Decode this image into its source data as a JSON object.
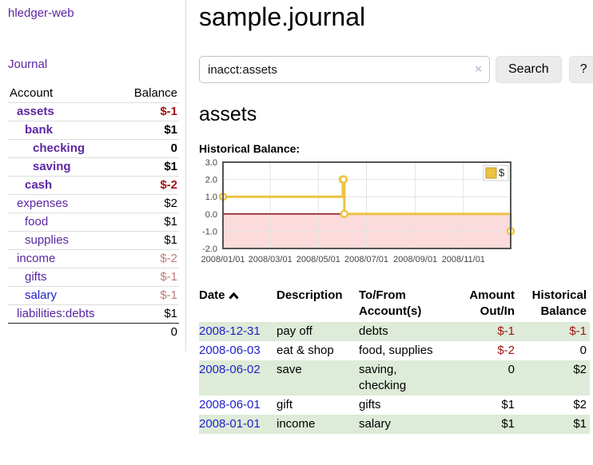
{
  "sidebar": {
    "app_title": "hledger-web",
    "nav": {
      "journal": "Journal"
    },
    "accounts_table": {
      "headers": {
        "account": "Account",
        "balance": "Balance"
      },
      "rows": [
        {
          "name": "assets",
          "balance": "$-1",
          "depth": 1,
          "bold": true,
          "neg": "strong",
          "link_color": "purple"
        },
        {
          "name": "bank",
          "balance": "$1",
          "depth": 2,
          "bold": true,
          "neg": null,
          "link_color": "purple"
        },
        {
          "name": "checking",
          "balance": "0",
          "depth": 3,
          "bold": true,
          "neg": null,
          "link_color": "purple"
        },
        {
          "name": "saving",
          "balance": "$1",
          "depth": 3,
          "bold": true,
          "neg": null,
          "link_color": "purple"
        },
        {
          "name": "cash",
          "balance": "$-2",
          "depth": 2,
          "bold": true,
          "neg": "strong",
          "link_color": "purple"
        },
        {
          "name": "expenses",
          "balance": "$2",
          "depth": 1,
          "bold": false,
          "neg": null,
          "link_color": "purple"
        },
        {
          "name": "food",
          "balance": "$1",
          "depth": 2,
          "bold": false,
          "neg": null,
          "link_color": "purple"
        },
        {
          "name": "supplies",
          "balance": "$1",
          "depth": 2,
          "bold": false,
          "neg": null,
          "link_color": "purple"
        },
        {
          "name": "income",
          "balance": "$-2",
          "depth": 1,
          "bold": false,
          "neg": "soft",
          "link_color": "purple"
        },
        {
          "name": "gifts",
          "balance": "$-1",
          "depth": 2,
          "bold": false,
          "neg": "soft",
          "link_color": "purple"
        },
        {
          "name": "salary",
          "balance": "$-1",
          "depth": 2,
          "bold": false,
          "neg": "soft",
          "link_color": "blue"
        },
        {
          "name": "liabilities:debts",
          "balance": "$1",
          "depth": 1,
          "bold": false,
          "neg": null,
          "link_color": "purple"
        }
      ],
      "total": "0"
    }
  },
  "header": {
    "title": "sample.journal"
  },
  "search": {
    "value": "inacct:assets",
    "clear_icon": "×",
    "button_label": "Search",
    "help_label": "?"
  },
  "account_page": {
    "heading": "assets",
    "chart_label": "Historical Balance:"
  },
  "chart_data": {
    "type": "line",
    "title": "Historical Balance:",
    "step": true,
    "series": [
      {
        "name": "$",
        "color": "#edc240",
        "points": [
          [
            "2008-01-01",
            1
          ],
          [
            "2008-06-01",
            2
          ],
          [
            "2008-06-02",
            2
          ],
          [
            "2008-06-03",
            0
          ],
          [
            "2008-12-31",
            -1
          ]
        ]
      }
    ],
    "x_range": [
      "2008-01-01",
      "2008-12-31"
    ],
    "x_ticks": [
      {
        "date": "2008-01-01",
        "label": "2008/01/01"
      },
      {
        "date": "2008-03-01",
        "label": "2008/03/01"
      },
      {
        "date": "2008-05-01",
        "label": "2008/05/01"
      },
      {
        "date": "2008-07-01",
        "label": "2008/07/01"
      },
      {
        "date": "2008-09-01",
        "label": "2008/09/01"
      },
      {
        "date": "2008-11-01",
        "label": "2008/11/01"
      }
    ],
    "y_ticks": [
      {
        "value": 3,
        "label": "3.0"
      },
      {
        "value": 2,
        "label": "2.0"
      },
      {
        "value": 1,
        "label": "1.0"
      },
      {
        "value": 0,
        "label": "0.0"
      },
      {
        "value": -1,
        "label": "-1.0"
      },
      {
        "value": -2,
        "label": "-2.0"
      }
    ],
    "ylim": [
      -2,
      3
    ],
    "grid": true,
    "legend": {
      "position": "top-right",
      "label": "$"
    },
    "negative_region": {
      "from": 0,
      "to": -2,
      "color": "#fbdbdb",
      "line_color": "#8b1010"
    },
    "colors": {
      "border": "#545454",
      "gridline": "#e3e3e3",
      "tick_text": "#444444"
    }
  },
  "register": {
    "headers": {
      "date": "Date",
      "sort_icon": "chevron-up",
      "description": "Description",
      "accounts": "To/From Account(s)",
      "amount": "Amount Out/In",
      "balance": "Historical Balance"
    },
    "rows": [
      {
        "date": "2008-12-31",
        "description": "pay off",
        "accounts": "debts",
        "amount": "$-1",
        "amount_neg": true,
        "balance": "$-1",
        "balance_neg": true
      },
      {
        "date": "2008-06-03",
        "description": "eat & shop",
        "accounts": "food, supplies",
        "amount": "$-2",
        "amount_neg": true,
        "balance": "0",
        "balance_neg": false
      },
      {
        "date": "2008-06-02",
        "description": "save",
        "accounts": "saving, checking",
        "amount": "0",
        "amount_neg": false,
        "balance": "$2",
        "balance_neg": false
      },
      {
        "date": "2008-06-01",
        "description": "gift",
        "accounts": "gifts",
        "amount": "$1",
        "amount_neg": false,
        "balance": "$2",
        "balance_neg": false
      },
      {
        "date": "2008-01-01",
        "description": "income",
        "accounts": "salary",
        "amount": "$1",
        "amount_neg": false,
        "balance": "$1",
        "balance_neg": false
      }
    ]
  }
}
